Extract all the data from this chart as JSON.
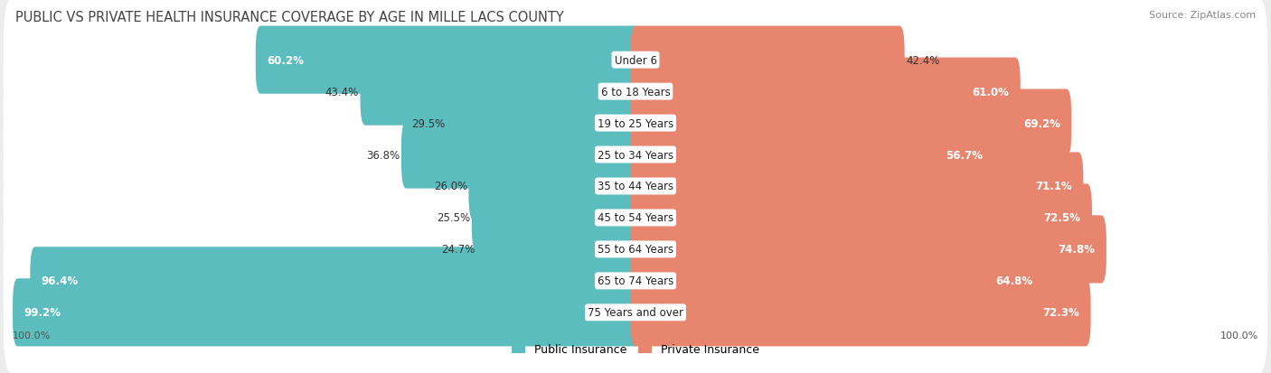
{
  "title": "PUBLIC VS PRIVATE HEALTH INSURANCE COVERAGE BY AGE IN MILLE LACS COUNTY",
  "source": "Source: ZipAtlas.com",
  "categories": [
    "Under 6",
    "6 to 18 Years",
    "19 to 25 Years",
    "25 to 34 Years",
    "35 to 44 Years",
    "45 to 54 Years",
    "55 to 64 Years",
    "65 to 74 Years",
    "75 Years and over"
  ],
  "public_values": [
    60.2,
    43.4,
    29.5,
    36.8,
    26.0,
    25.5,
    24.7,
    96.4,
    99.2
  ],
  "private_values": [
    42.4,
    61.0,
    69.2,
    56.7,
    71.1,
    72.5,
    74.8,
    64.8,
    72.3
  ],
  "public_color": "#5bbdbe",
  "private_color": "#e8856f",
  "axis_max": 100.0,
  "background_color": "#ececec",
  "row_bg_color": "#ffffff",
  "legend_public": "Public Insurance",
  "legend_private": "Private Insurance",
  "title_fontsize": 10.5,
  "label_fontsize": 8.5,
  "category_fontsize": 8.5,
  "source_fontsize": 8,
  "axis_label_fontsize": 8
}
